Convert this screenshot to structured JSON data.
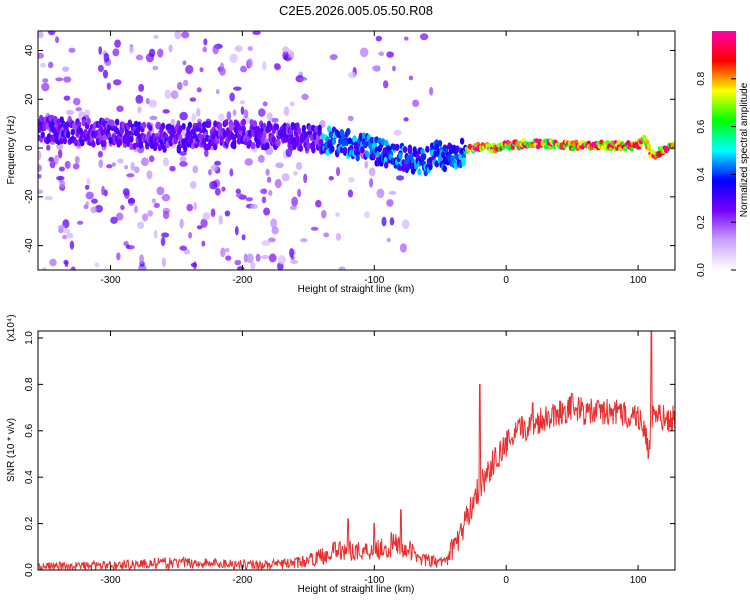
{
  "title": "C2E5.2026.005.05.50.R08",
  "chart_data": [
    {
      "type": "heatmap",
      "xlabel": "Height of straight line (km)",
      "ylabel": "Frequency (Hz)",
      "xlim": [
        -355,
        128
      ],
      "ylim": [
        -50,
        48
      ],
      "x_ticks": [
        -300,
        -200,
        -100,
        0,
        100
      ],
      "x_tick_labels": [
        "-300",
        "-200",
        "-100",
        "0",
        "100"
      ],
      "y_ticks": [
        -40,
        -20,
        0,
        20,
        40
      ],
      "y_tick_labels": [
        "-40",
        "-20",
        "0",
        "20",
        "40"
      ],
      "colorbar": {
        "label": "Normalized spectral amplitude",
        "range": [
          0,
          1
        ],
        "ticks": [
          0.0,
          0.2,
          0.4,
          0.6,
          0.8
        ],
        "tick_labels": [
          "0.0",
          "0.2",
          "0.4",
          "0.6",
          "0.8"
        ],
        "colormap": [
          "#ffffff",
          "#c8a0ff",
          "#7700ff",
          "#0000ff",
          "#00ffff",
          "#00ff00",
          "#ffff00",
          "#ff0000",
          "#ff00aa"
        ]
      },
      "ridge": {
        "x": [
          -355,
          -300,
          -250,
          -200,
          -150,
          -120,
          -100,
          -80,
          -62,
          -55,
          -45,
          -35,
          -25,
          -10,
          0,
          20,
          50,
          80,
          100,
          105,
          110,
          128
        ],
        "frequency": [
          8,
          6,
          4,
          6,
          4,
          2,
          -1,
          -4,
          -6,
          -2,
          -4,
          -2,
          0,
          0,
          1,
          2,
          1,
          1,
          1,
          4,
          -3,
          1
        ]
      }
    },
    {
      "type": "line",
      "xlabel": "Height of straight line (km)",
      "ylabel": "SNR (10 * v/v)",
      "y_multiplier": "(x10⁴)",
      "xlim": [
        -355,
        128
      ],
      "ylim": [
        0,
        1.03
      ],
      "x_ticks": [
        -300,
        -200,
        -100,
        0,
        100
      ],
      "x_tick_labels": [
        "-300",
        "-200",
        "-100",
        "0",
        "100"
      ],
      "y_ticks": [
        0.0,
        0.2,
        0.4,
        0.6,
        0.8,
        1.0
      ],
      "y_tick_labels": [
        "0.0",
        "0.2",
        "0.4",
        "0.6",
        "0.8",
        "1.0"
      ],
      "color": "#e83030",
      "series": [
        {
          "x": [
            -355,
            -320,
            -300,
            -280,
            -260,
            -240,
            -220,
            -200,
            -180,
            -160,
            -150,
            -140,
            -130,
            -120,
            -110,
            -100,
            -90,
            -80,
            -70,
            -60,
            -50,
            -45,
            -40,
            -35,
            -30,
            -25,
            -20,
            -15,
            -10,
            -5,
            0,
            10,
            20,
            30,
            40,
            50,
            60,
            70,
            80,
            90,
            100,
            105,
            108,
            110,
            115,
            120,
            128
          ],
          "values": [
            0.015,
            0.018,
            0.02,
            0.025,
            0.03,
            0.03,
            0.028,
            0.025,
            0.022,
            0.03,
            0.04,
            0.06,
            0.08,
            0.09,
            0.08,
            0.09,
            0.1,
            0.11,
            0.07,
            0.04,
            0.03,
            0.05,
            0.1,
            0.15,
            0.22,
            0.3,
            0.36,
            0.41,
            0.46,
            0.5,
            0.54,
            0.6,
            0.63,
            0.66,
            0.68,
            0.7,
            0.68,
            0.68,
            0.68,
            0.67,
            0.66,
            0.62,
            0.47,
            0.66,
            0.66,
            0.65,
            0.65
          ]
        }
      ],
      "spikes": [
        {
          "x": 110,
          "value": 1.03
        },
        {
          "x": -20,
          "value": 0.8
        },
        {
          "x": 50,
          "value": 0.76
        },
        {
          "x": -130,
          "value": 0.12
        },
        {
          "x": -120,
          "value": 0.22
        },
        {
          "x": -100,
          "value": 0.2
        },
        {
          "x": -80,
          "value": 0.26
        },
        {
          "x": 20,
          "value": 0.72
        }
      ]
    }
  ]
}
